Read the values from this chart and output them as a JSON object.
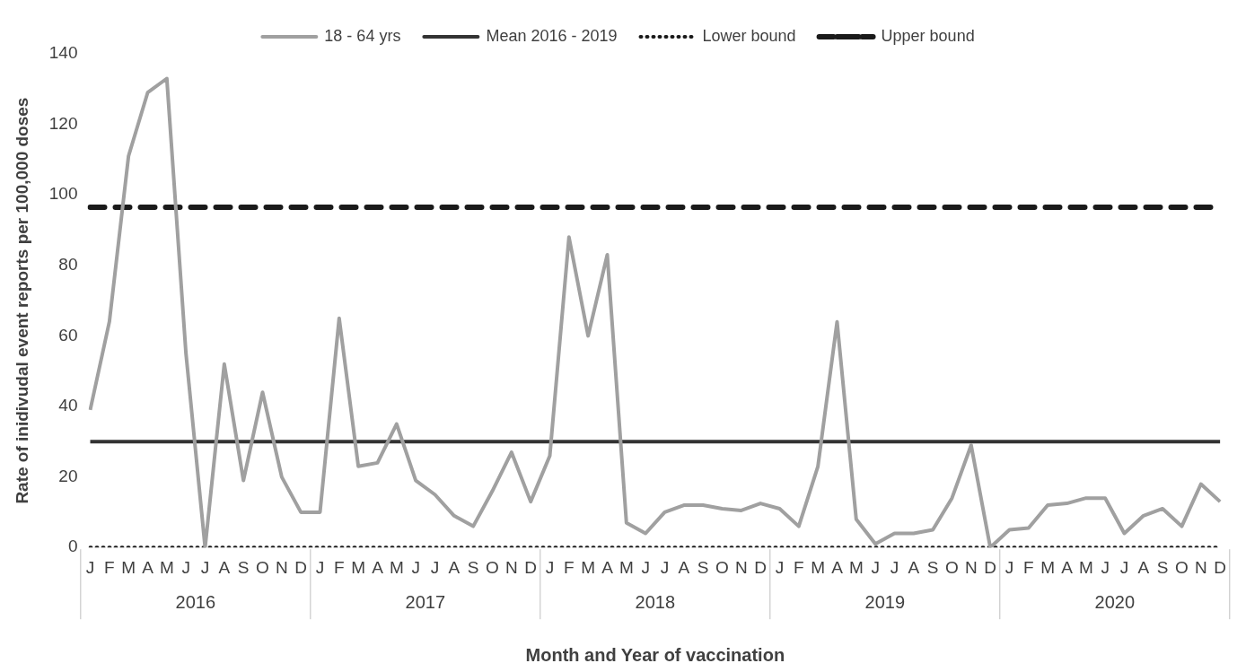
{
  "chart_data": {
    "type": "line",
    "xlabel": "Month and Year of vaccination",
    "ylabel": "Rate of inidivudal event reports per 100,000 doses",
    "categories": [
      "J",
      "F",
      "M",
      "A",
      "M",
      "J",
      "J",
      "A",
      "S",
      "O",
      "N",
      "D",
      "J",
      "F",
      "M",
      "A",
      "M",
      "J",
      "J",
      "A",
      "S",
      "O",
      "N",
      "D",
      "J",
      "F",
      "M",
      "A",
      "M",
      "J",
      "J",
      "A",
      "S",
      "O",
      "N",
      "D",
      "J",
      "F",
      "M",
      "A",
      "M",
      "J",
      "J",
      "A",
      "S",
      "O",
      "N",
      "D",
      "J",
      "F",
      "M",
      "A",
      "M",
      "J",
      "J",
      "A",
      "S",
      "O",
      "N",
      "D"
    ],
    "series": [
      {
        "name": "18 - 64 yrs",
        "color": "#a0a0a0",
        "line_style": "solid",
        "values": [
          39,
          64,
          111,
          129,
          133,
          55,
          0,
          52,
          19,
          44,
          20,
          10,
          10,
          65,
          23,
          24,
          35,
          19,
          15,
          9,
          6,
          16,
          27,
          13,
          26,
          88,
          60,
          83,
          7,
          4,
          10,
          12,
          12,
          11,
          10.5,
          12.5,
          11,
          6,
          23,
          64,
          8,
          1,
          4,
          4,
          5,
          14,
          29,
          0,
          5,
          5.5,
          12,
          12.5,
          14,
          14,
          4,
          9,
          11,
          6,
          18,
          13
        ]
      },
      {
        "name": "Mean 2016 - 2019",
        "color": "#333333",
        "line_style": "solid",
        "values": [
          30,
          30,
          30,
          30,
          30,
          30,
          30,
          30,
          30,
          30,
          30,
          30,
          30,
          30,
          30,
          30,
          30,
          30,
          30,
          30,
          30,
          30,
          30,
          30,
          30,
          30,
          30,
          30,
          30,
          30,
          30,
          30,
          30,
          30,
          30,
          30,
          30,
          30,
          30,
          30,
          30,
          30,
          30,
          30,
          30,
          30,
          30,
          30,
          30,
          30,
          30,
          30,
          30,
          30,
          30,
          30,
          30,
          30,
          30,
          30
        ]
      },
      {
        "name": "Lower bound",
        "color": "#1a1a1a",
        "line_style": "dotted",
        "values": [
          0,
          0,
          0,
          0,
          0,
          0,
          0,
          0,
          0,
          0,
          0,
          0,
          0,
          0,
          0,
          0,
          0,
          0,
          0,
          0,
          0,
          0,
          0,
          0,
          0,
          0,
          0,
          0,
          0,
          0,
          0,
          0,
          0,
          0,
          0,
          0,
          0,
          0,
          0,
          0,
          0,
          0,
          0,
          0,
          0,
          0,
          0,
          0,
          0,
          0,
          0,
          0,
          0,
          0,
          0,
          0,
          0,
          0,
          0,
          0
        ]
      },
      {
        "name": "Upper bound",
        "color": "#1a1a1a",
        "line_style": "dashed",
        "values": [
          96.5,
          96.5,
          96.5,
          96.5,
          96.5,
          96.5,
          96.5,
          96.5,
          96.5,
          96.5,
          96.5,
          96.5,
          96.5,
          96.5,
          96.5,
          96.5,
          96.5,
          96.5,
          96.5,
          96.5,
          96.5,
          96.5,
          96.5,
          96.5,
          96.5,
          96.5,
          96.5,
          96.5,
          96.5,
          96.5,
          96.5,
          96.5,
          96.5,
          96.5,
          96.5,
          96.5,
          96.5,
          96.5,
          96.5,
          96.5,
          96.5,
          96.5,
          96.5,
          96.5,
          96.5,
          96.5,
          96.5,
          96.5,
          96.5,
          96.5,
          96.5,
          96.5,
          96.5,
          96.5,
          96.5,
          96.5,
          96.5,
          96.5,
          96.5,
          96.5
        ]
      }
    ],
    "annotations": [
      "2016",
      "2017",
      "2018",
      "2019",
      "2020"
    ],
    "ylim": [
      0,
      140
    ],
    "yticks": [
      0,
      20,
      40,
      60,
      80,
      100,
      120,
      140
    ],
    "grid": false,
    "legend": "top",
    "marker": "none"
  }
}
